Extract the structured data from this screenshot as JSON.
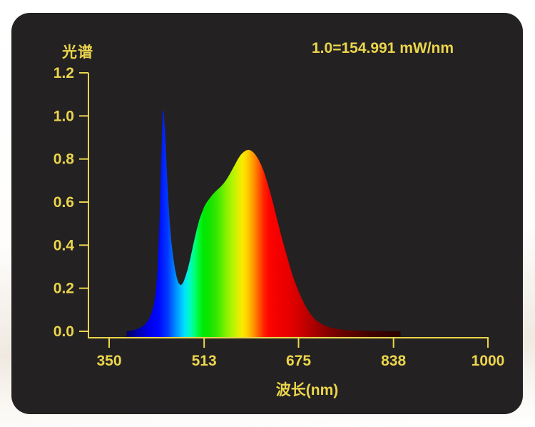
{
  "header": {
    "title": "光谱",
    "scale_label": "1.0=154.991 mW/nm"
  },
  "chart_data": {
    "type": "area",
    "title": "光谱",
    "scale_annotation": "1.0=154.991 mW/nm",
    "xlabel": "波长(nm)",
    "ylabel": "",
    "x_ticks": [
      "350",
      "513",
      "675",
      "838",
      "1000"
    ],
    "y_ticks": [
      "1.2",
      "1.0",
      "0.8",
      "0.6",
      "0.4",
      "0.2",
      "0.0"
    ],
    "xlim": [
      315,
      1000
    ],
    "ylim": [
      0,
      1.2
    ],
    "grid": false,
    "legend": false,
    "axis_color": "#ebd54c",
    "background_color": "#232122",
    "series": [
      {
        "name": "spectral-power-distribution",
        "x_unit": "nm",
        "peaks": [
          {
            "wavelength": 443,
            "value": 1.03
          },
          {
            "wavelength": 589,
            "value": 0.84
          }
        ],
        "valley": {
          "wavelength": 472,
          "value": 0.215
        },
        "points": [
          [
            380,
            0
          ],
          [
            388,
            0.003
          ],
          [
            395,
            0.008
          ],
          [
            402,
            0.015
          ],
          [
            408,
            0.024
          ],
          [
            414,
            0.04
          ],
          [
            419,
            0.06
          ],
          [
            423,
            0.085
          ],
          [
            427,
            0.125
          ],
          [
            430,
            0.18
          ],
          [
            433,
            0.28
          ],
          [
            435,
            0.4
          ],
          [
            437,
            0.56
          ],
          [
            439,
            0.75
          ],
          [
            441,
            0.93
          ],
          [
            442,
            1.02
          ],
          [
            443,
            1.03
          ],
          [
            444,
            1.01
          ],
          [
            446,
            0.92
          ],
          [
            448,
            0.8
          ],
          [
            451,
            0.63
          ],
          [
            454,
            0.5
          ],
          [
            457,
            0.41
          ],
          [
            460,
            0.34
          ],
          [
            463,
            0.29
          ],
          [
            466,
            0.25
          ],
          [
            469,
            0.225
          ],
          [
            472,
            0.215
          ],
          [
            475,
            0.218
          ],
          [
            478,
            0.232
          ],
          [
            481,
            0.255
          ],
          [
            485,
            0.29
          ],
          [
            489,
            0.335
          ],
          [
            493,
            0.385
          ],
          [
            497,
            0.435
          ],
          [
            501,
            0.48
          ],
          [
            505,
            0.52
          ],
          [
            509,
            0.55
          ],
          [
            513,
            0.578
          ],
          [
            517,
            0.597
          ],
          [
            521,
            0.612
          ],
          [
            526,
            0.63
          ],
          [
            531,
            0.645
          ],
          [
            536,
            0.658
          ],
          [
            541,
            0.67
          ],
          [
            546,
            0.685
          ],
          [
            551,
            0.703
          ],
          [
            556,
            0.725
          ],
          [
            561,
            0.75
          ],
          [
            566,
            0.775
          ],
          [
            571,
            0.8
          ],
          [
            576,
            0.82
          ],
          [
            581,
            0.833
          ],
          [
            585,
            0.84
          ],
          [
            589,
            0.843
          ],
          [
            593,
            0.84
          ],
          [
            597,
            0.832
          ],
          [
            601,
            0.82
          ],
          [
            606,
            0.8
          ],
          [
            611,
            0.772
          ],
          [
            616,
            0.738
          ],
          [
            621,
            0.695
          ],
          [
            626,
            0.648
          ],
          [
            631,
            0.597
          ],
          [
            636,
            0.543
          ],
          [
            641,
            0.49
          ],
          [
            646,
            0.438
          ],
          [
            651,
            0.388
          ],
          [
            656,
            0.34
          ],
          [
            661,
            0.293
          ],
          [
            666,
            0.25
          ],
          [
            671,
            0.213
          ],
          [
            676,
            0.18
          ],
          [
            681,
            0.15
          ],
          [
            686,
            0.122
          ],
          [
            691,
            0.098
          ],
          [
            696,
            0.078
          ],
          [
            702,
            0.059
          ],
          [
            708,
            0.045
          ],
          [
            715,
            0.033
          ],
          [
            722,
            0.024
          ],
          [
            730,
            0.017
          ],
          [
            739,
            0.012
          ],
          [
            749,
            0.008
          ],
          [
            760,
            0.005
          ],
          [
            775,
            0.0035
          ],
          [
            790,
            0.002
          ],
          [
            810,
            0.0012
          ],
          [
            830,
            0.0006
          ],
          [
            850,
            0
          ]
        ]
      }
    ],
    "gradient_stops": [
      [
        380,
        "#000060"
      ],
      [
        400,
        "#0000b0"
      ],
      [
        418,
        "#0000e8"
      ],
      [
        435,
        "#0008ff"
      ],
      [
        450,
        "#0038ff"
      ],
      [
        462,
        "#0080ff"
      ],
      [
        472,
        "#00b8ff"
      ],
      [
        480,
        "#00e4f8"
      ],
      [
        488,
        "#00f8c8"
      ],
      [
        496,
        "#00ff80"
      ],
      [
        504,
        "#00f830"
      ],
      [
        512,
        "#00e800"
      ],
      [
        522,
        "#10e400"
      ],
      [
        535,
        "#38e800"
      ],
      [
        548,
        "#78f000"
      ],
      [
        560,
        "#acf400"
      ],
      [
        570,
        "#d8f000"
      ],
      [
        578,
        "#f8ec00"
      ],
      [
        585,
        "#ffd800"
      ],
      [
        592,
        "#ffb400"
      ],
      [
        600,
        "#ff8800"
      ],
      [
        608,
        "#ff5400"
      ],
      [
        616,
        "#ff2000"
      ],
      [
        625,
        "#fc0400"
      ],
      [
        645,
        "#f00000"
      ],
      [
        665,
        "#e00000"
      ],
      [
        685,
        "#c40000"
      ],
      [
        705,
        "#a40000"
      ],
      [
        730,
        "#800000"
      ],
      [
        760,
        "#600000"
      ],
      [
        800,
        "#400000"
      ],
      [
        850,
        "#280000"
      ]
    ]
  }
}
